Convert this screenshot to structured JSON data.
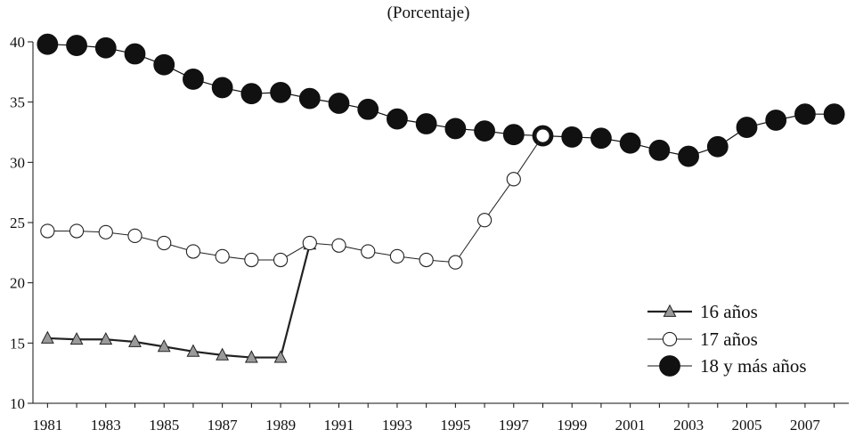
{
  "chart_data": {
    "type": "line",
    "subtitle": "(Porcentaje)",
    "xlabel": "",
    "ylabel": "",
    "ylim": [
      10,
      40
    ],
    "yticks": [
      10,
      15,
      20,
      25,
      30,
      35,
      40
    ],
    "xlim": [
      1980.5,
      2008.5
    ],
    "xtick_labels": [
      "1981",
      "1983",
      "1985",
      "1987",
      "1989",
      "1991",
      "1993",
      "1995",
      "1997",
      "1999",
      "2001",
      "2003",
      "2005",
      "2007"
    ],
    "grid": false,
    "legend_position": "bottom-right",
    "series": [
      {
        "name": "16 años",
        "marker": "triangle",
        "color": "#222222",
        "fill": "#9a9a9a",
        "x": [
          1981,
          1982,
          1983,
          1984,
          1985,
          1986,
          1987,
          1988,
          1989,
          1990
        ],
        "values": [
          15.4,
          15.3,
          15.3,
          15.1,
          14.7,
          14.3,
          14.0,
          13.8,
          13.8,
          23.2
        ]
      },
      {
        "name": "17 años",
        "marker": "open-circle",
        "color": "#222222",
        "fill": "#ffffff",
        "x": [
          1981,
          1982,
          1983,
          1984,
          1985,
          1986,
          1987,
          1988,
          1989,
          1990,
          1991,
          1992,
          1993,
          1994,
          1995,
          1996,
          1997,
          1998
        ],
        "values": [
          24.3,
          24.3,
          24.2,
          23.9,
          23.3,
          22.6,
          22.2,
          21.9,
          21.9,
          23.3,
          23.1,
          22.6,
          22.2,
          21.9,
          21.7,
          25.2,
          28.6,
          32.2
        ]
      },
      {
        "name": "18 y más años",
        "marker": "filled-circle",
        "color": "#111111",
        "fill": "#111111",
        "x": [
          1981,
          1982,
          1983,
          1984,
          1985,
          1986,
          1987,
          1988,
          1989,
          1990,
          1991,
          1992,
          1993,
          1994,
          1995,
          1996,
          1997,
          1998,
          1999,
          2000,
          2001,
          2002,
          2003,
          2004,
          2005,
          2006,
          2007,
          2008
        ],
        "values": [
          39.8,
          39.7,
          39.5,
          39.0,
          38.1,
          36.9,
          36.2,
          35.7,
          35.8,
          35.3,
          34.9,
          34.4,
          33.6,
          33.2,
          32.8,
          32.6,
          32.3,
          32.2,
          32.1,
          32.0,
          31.6,
          31.0,
          30.5,
          31.3,
          32.9,
          33.5,
          34.0,
          34.0
        ]
      }
    ]
  }
}
